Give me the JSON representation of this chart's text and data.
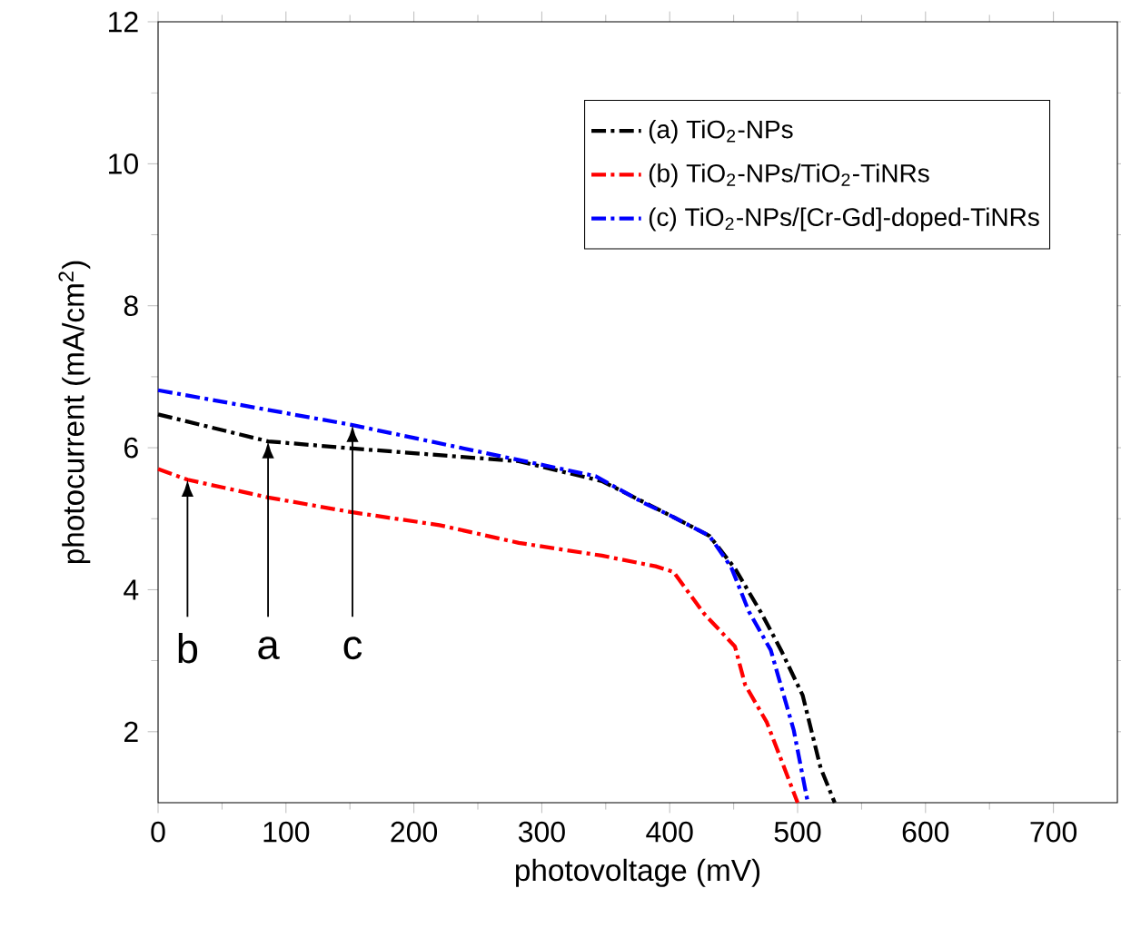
{
  "chart_data": {
    "type": "line",
    "xlabel": "photovoltage (mV)",
    "ylabel": "photocurrent (mA/cm$^{2}$)",
    "xlim": [
      0,
      750
    ],
    "ylim": [
      1,
      12
    ],
    "xticks": [
      0,
      100,
      200,
      300,
      400,
      500,
      600,
      700
    ],
    "yticks": [
      2,
      4,
      6,
      8,
      10,
      12
    ],
    "grid": false,
    "legend": "top right",
    "line_style": "dashdot",
    "marker": "none",
    "series": [
      {
        "name": "(a) TiO$_{2}$-NPs",
        "color": "#000000",
        "x": [
          0,
          86,
          152,
          282,
          347,
          400,
          431,
          451,
          472,
          487,
          504,
          518,
          529
        ],
        "values": [
          6.47,
          6.09,
          5.99,
          5.81,
          5.53,
          5.05,
          4.76,
          4.3,
          3.66,
          3.15,
          2.51,
          1.49,
          1.0
        ]
      },
      {
        "name": "(b) TiO$_{2}$-NPs/TiO$_{2}$-TiNRs",
        "color": "#ff0000",
        "x": [
          0,
          23,
          86,
          152,
          220,
          282,
          347,
          389,
          403,
          427,
          451,
          459,
          476,
          500
        ],
        "values": [
          5.7,
          5.55,
          5.3,
          5.09,
          4.91,
          4.66,
          4.48,
          4.33,
          4.25,
          3.66,
          3.2,
          2.66,
          2.13,
          1.0
        ]
      },
      {
        "name": "(c) TiO$_{2}$-NPs/[Cr-Gd]-doped-TiNRs",
        "color": "#0000ff",
        "x": [
          0,
          152,
          342,
          380,
          400,
          431,
          448,
          462,
          479,
          497,
          508
        ],
        "values": [
          6.81,
          6.32,
          5.6,
          5.22,
          5.05,
          4.76,
          4.32,
          3.69,
          3.15,
          2.02,
          1.0
        ]
      }
    ],
    "annotations": [
      {
        "text": "b",
        "x": 23,
        "y": 5.55
      },
      {
        "text": "a",
        "x": 86,
        "y": 6.09
      },
      {
        "text": "c",
        "x": 152,
        "y": 6.32
      }
    ]
  }
}
